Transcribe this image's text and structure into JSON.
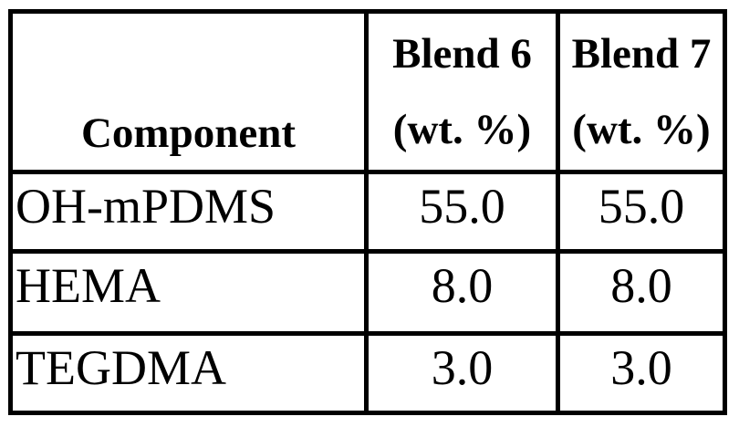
{
  "page": {
    "background_color": "#ffffff",
    "border_color": "#000000",
    "text_color": "#000000"
  },
  "table": {
    "header": {
      "component_label": "Component",
      "blend_columns": [
        {
          "line1": "Blend 6",
          "line2": "(wt. %)"
        },
        {
          "line1": "Blend 7",
          "line2": "(wt. %)"
        }
      ]
    },
    "rows": [
      {
        "component": "OH-mPDMS",
        "values": [
          "55.0",
          "55.0"
        ]
      },
      {
        "component": "HEMA",
        "values": [
          "8.0",
          "8.0"
        ]
      },
      {
        "component": "TEGDMA",
        "values": [
          "3.0",
          "3.0"
        ]
      }
    ]
  },
  "chart_data": {
    "type": "table",
    "columns": [
      "Component",
      "Blend 6 (wt. %)",
      "Blend 7 (wt. %)"
    ],
    "rows": [
      [
        "OH-mPDMS",
        "55.0",
        "55.0"
      ],
      [
        "HEMA",
        "8.0",
        "8.0"
      ],
      [
        "TEGDMA",
        "3.0",
        "3.0"
      ]
    ]
  }
}
